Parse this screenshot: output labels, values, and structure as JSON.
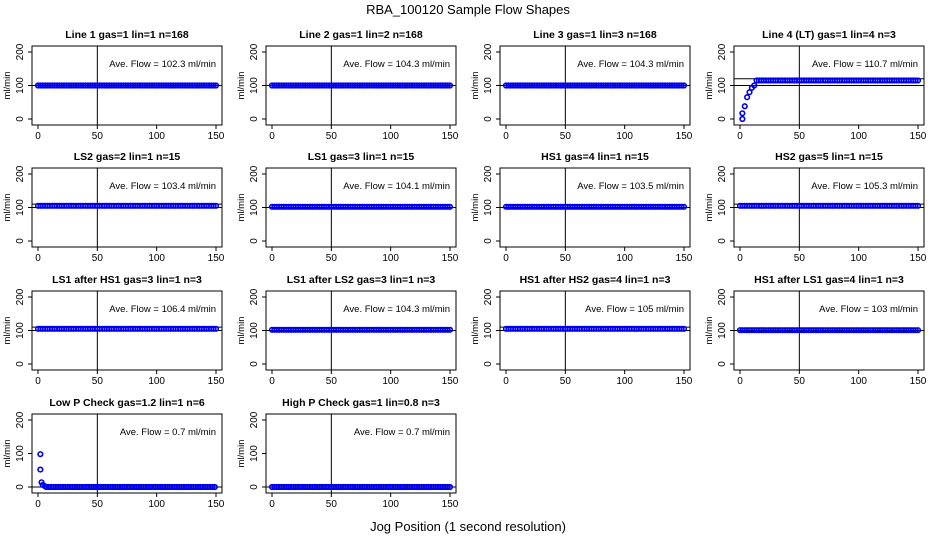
{
  "figure": {
    "title": "RBA_100120  Sample Flow Shapes",
    "xlabel": "Jog Position (1 second resolution)",
    "colors": {
      "points": "#0000ee",
      "lines": "#000000",
      "background": "#ffffff"
    }
  },
  "chart_data": [
    {
      "type": "scatter",
      "title": "Line 1 gas=1 lin=1 n=168",
      "ylabel": "ml/min",
      "xlim": [
        0,
        150
      ],
      "ylim": [
        0,
        200
      ],
      "xticks": [
        0,
        50,
        100,
        150
      ],
      "yticks": [
        0,
        100,
        200
      ],
      "vline_x": 50,
      "hlines": [
        100
      ],
      "flow_value": 100,
      "annotation": "Ave. Flow =  102.3  ml/min",
      "shape": "flat"
    },
    {
      "type": "scatter",
      "title": "Line 2 gas=1 lin=2 n=168",
      "ylabel": "ml/min",
      "xlim": [
        0,
        150
      ],
      "ylim": [
        0,
        200
      ],
      "xticks": [
        0,
        50,
        100,
        150
      ],
      "yticks": [
        0,
        100,
        200
      ],
      "vline_x": 50,
      "hlines": [
        100
      ],
      "flow_value": 100,
      "annotation": "Ave. Flow =  104.3  ml/min",
      "shape": "flat"
    },
    {
      "type": "scatter",
      "title": "Line 3 gas=1 lin=3 n=168",
      "ylabel": "ml/min",
      "xlim": [
        0,
        150
      ],
      "ylim": [
        0,
        200
      ],
      "xticks": [
        0,
        50,
        100,
        150
      ],
      "yticks": [
        0,
        100,
        200
      ],
      "vline_x": 50,
      "hlines": [
        100
      ],
      "flow_value": 100,
      "annotation": "Ave. Flow =  104.3  ml/min",
      "shape": "flat"
    },
    {
      "type": "scatter",
      "title": "Line 4 (LT) gas=1 lin=4 n=3",
      "ylabel": "ml/min",
      "xlim": [
        0,
        150
      ],
      "ylim": [
        0,
        200
      ],
      "xticks": [
        0,
        50,
        100,
        150
      ],
      "yticks": [
        0,
        100,
        200
      ],
      "vline_x": 50,
      "hlines": [
        100,
        120
      ],
      "flow_value": 115,
      "annotation": "Ave. Flow =  110.7  ml/min",
      "shape": "rise"
    },
    {
      "type": "scatter",
      "title": "LS2 gas=2 lin=1 n=15",
      "ylabel": "ml/min",
      "xlim": [
        0,
        150
      ],
      "ylim": [
        0,
        200
      ],
      "xticks": [
        0,
        50,
        100,
        150
      ],
      "yticks": [
        0,
        100,
        200
      ],
      "vline_x": 50,
      "hlines": [
        100,
        110
      ],
      "flow_value": 105,
      "annotation": "Ave. Flow =  103.4  ml/min",
      "shape": "flat"
    },
    {
      "type": "scatter",
      "title": "LS1 gas=3 lin=1 n=15",
      "ylabel": "ml/min",
      "xlim": [
        0,
        150
      ],
      "ylim": [
        0,
        200
      ],
      "xticks": [
        0,
        50,
        100,
        150
      ],
      "yticks": [
        0,
        100,
        200
      ],
      "vline_x": 50,
      "hlines": [
        100
      ],
      "flow_value": 102,
      "annotation": "Ave. Flow =  104.1  ml/min",
      "shape": "flat"
    },
    {
      "type": "scatter",
      "title": "HS1 gas=4 lin=1 n=15",
      "ylabel": "ml/min",
      "xlim": [
        0,
        150
      ],
      "ylim": [
        0,
        200
      ],
      "xticks": [
        0,
        50,
        100,
        150
      ],
      "yticks": [
        0,
        100,
        200
      ],
      "vline_x": 50,
      "hlines": [
        100
      ],
      "flow_value": 102,
      "annotation": "Ave. Flow =  103.5  ml/min",
      "shape": "flat"
    },
    {
      "type": "scatter",
      "title": "HS2 gas=5 lin=1 n=15",
      "ylabel": "ml/min",
      "xlim": [
        0,
        150
      ],
      "ylim": [
        0,
        200
      ],
      "xticks": [
        0,
        50,
        100,
        150
      ],
      "yticks": [
        0,
        100,
        200
      ],
      "vline_x": 50,
      "hlines": [
        100,
        110
      ],
      "flow_value": 105,
      "annotation": "Ave. Flow =  105.3  ml/min",
      "shape": "flat"
    },
    {
      "type": "scatter",
      "title": "LS1 after HS1 gas=3 lin=1 n=3",
      "ylabel": "ml/min",
      "xlim": [
        0,
        150
      ],
      "ylim": [
        0,
        200
      ],
      "xticks": [
        0,
        50,
        100,
        150
      ],
      "yticks": [
        0,
        100,
        200
      ],
      "vline_x": 50,
      "hlines": [
        100,
        110
      ],
      "flow_value": 105,
      "annotation": "Ave. Flow =  106.4  ml/min",
      "shape": "flat"
    },
    {
      "type": "scatter",
      "title": "LS1 after LS2 gas=3 lin=1 n=3",
      "ylabel": "ml/min",
      "xlim": [
        0,
        150
      ],
      "ylim": [
        0,
        200
      ],
      "xticks": [
        0,
        50,
        100,
        150
      ],
      "yticks": [
        0,
        100,
        200
      ],
      "vline_x": 50,
      "hlines": [
        100
      ],
      "flow_value": 102,
      "annotation": "Ave. Flow =  104.3  ml/min",
      "shape": "flat"
    },
    {
      "type": "scatter",
      "title": "HS1 after HS2 gas=4 lin=1 n=3",
      "ylabel": "ml/min",
      "xlim": [
        0,
        150
      ],
      "ylim": [
        0,
        200
      ],
      "xticks": [
        0,
        50,
        100,
        150
      ],
      "yticks": [
        0,
        100,
        200
      ],
      "vline_x": 50,
      "hlines": [
        100,
        110
      ],
      "flow_value": 105,
      "annotation": "Ave. Flow =  105  ml/min",
      "shape": "flat"
    },
    {
      "type": "scatter",
      "title": "HS1 after LS1 gas=4 lin=1 n=3",
      "ylabel": "ml/min",
      "xlim": [
        0,
        150
      ],
      "ylim": [
        0,
        200
      ],
      "xticks": [
        0,
        50,
        100,
        150
      ],
      "yticks": [
        0,
        100,
        200
      ],
      "vline_x": 50,
      "hlines": [
        100
      ],
      "flow_value": 101,
      "annotation": "Ave. Flow =  103  ml/min",
      "shape": "flat"
    },
    {
      "type": "scatter",
      "title": "Low P Check gas=1.2 lin=1 n=6",
      "ylabel": "ml/min",
      "xlim": [
        0,
        150
      ],
      "ylim": [
        0,
        200
      ],
      "xticks": [
        0,
        50,
        100,
        150
      ],
      "yticks": [
        0,
        100,
        200
      ],
      "vline_x": 50,
      "hlines": [
        0
      ],
      "flow_value": 0,
      "annotation": "Ave. Flow =  0.7  ml/min",
      "shape": "drop"
    },
    {
      "type": "scatter",
      "title": "High P Check gas=1 lin=0.8 n=3",
      "ylabel": "ml/min",
      "xlim": [
        0,
        150
      ],
      "ylim": [
        0,
        200
      ],
      "xticks": [
        0,
        50,
        100,
        150
      ],
      "yticks": [
        0,
        100,
        200
      ],
      "vline_x": 50,
      "hlines": [
        0
      ],
      "flow_value": 0,
      "annotation": "Ave. Flow =  0.7  ml/min",
      "shape": "flat"
    }
  ]
}
